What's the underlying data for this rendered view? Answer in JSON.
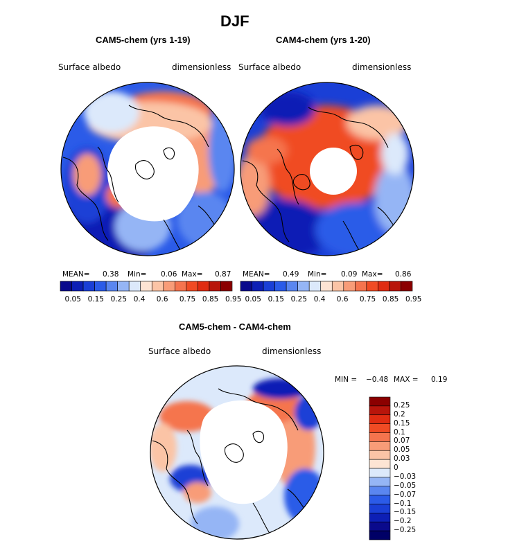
{
  "figure": {
    "title": "DJF"
  },
  "chart_data": [
    {
      "type": "heatmap",
      "projection": "north polar stereographic",
      "title": "CAM5-chem (yrs 1-19)",
      "left_label": "Surface albedo",
      "right_label": "dimensionless",
      "stats": {
        "mean_label": "MEAN=",
        "mean": "0.38",
        "min_label": "Min=",
        "min": "0.06",
        "max_label": "Max=",
        "max": "0.87"
      },
      "colorbar": {
        "orientation": "horizontal",
        "levels": [
          "0.05",
          "0.1",
          "0.15",
          "0.2",
          "0.25",
          "0.3",
          "0.4",
          "0.5",
          "0.6",
          "0.7",
          "0.75",
          "0.8",
          "0.85",
          "0.9",
          "0.95"
        ],
        "tick_labels": [
          "0.05",
          "0.15",
          "0.25",
          "0.4",
          "0.6",
          "0.75",
          "0.85",
          "0.95"
        ],
        "colors": [
          "#0a0a8c",
          "#0d1fb5",
          "#1a3fd6",
          "#2b5be8",
          "#5a86f0",
          "#95b5f5",
          "#dce9fb",
          "#fde4d4",
          "#fbc4a6",
          "#f89c78",
          "#f5744e",
          "#f04b24",
          "#e02c12",
          "#b8150b",
          "#8b0000"
        ]
      },
      "polar_hole_radius": "mostly missing north of ~65N"
    },
    {
      "type": "heatmap",
      "projection": "north polar stereographic",
      "title": "CAM4-chem (yrs 1-20)",
      "left_label": "Surface albedo",
      "right_label": "dimensionless",
      "stats": {
        "mean_label": "MEAN=",
        "mean": "0.49",
        "min_label": "Min=",
        "min": "0.09",
        "max_label": "Max=",
        "max": "0.86"
      },
      "colorbar": {
        "orientation": "horizontal",
        "levels": [
          "0.05",
          "0.1",
          "0.15",
          "0.2",
          "0.25",
          "0.3",
          "0.4",
          "0.5",
          "0.6",
          "0.7",
          "0.75",
          "0.8",
          "0.85",
          "0.9",
          "0.95"
        ],
        "tick_labels": [
          "0.05",
          "0.15",
          "0.25",
          "0.4",
          "0.6",
          "0.75",
          "0.85",
          "0.95"
        ],
        "colors": [
          "#0a0a8c",
          "#0d1fb5",
          "#1a3fd6",
          "#2b5be8",
          "#5a86f0",
          "#95b5f5",
          "#dce9fb",
          "#fde4d4",
          "#fbc4a6",
          "#f89c78",
          "#f5744e",
          "#f04b24",
          "#e02c12",
          "#b8150b",
          "#8b0000"
        ]
      }
    },
    {
      "type": "heatmap",
      "projection": "north polar stereographic",
      "title": "CAM5-chem - CAM4-chem",
      "left_label": "Surface albedo",
      "right_label": "dimensionless",
      "stats": {
        "min_label": "MIN =",
        "min": "−0.48",
        "max_label": "MAX =",
        "max": "0.19"
      },
      "colorbar": {
        "orientation": "vertical",
        "tick_labels": [
          "0.25",
          "0.2",
          "0.15",
          "0.1",
          "0.07",
          "0.05",
          "0.03",
          "0",
          "−0.03",
          "−0.05",
          "−0.07",
          "−0.1",
          "−0.15",
          "−0.2",
          "−0.25"
        ],
        "colors": [
          "#8b0000",
          "#b8150b",
          "#e02c12",
          "#f04b24",
          "#f5744e",
          "#f89c78",
          "#fbc4a6",
          "#fde4d4",
          "#dce9fb",
          "#95b5f5",
          "#5a86f0",
          "#2b5be8",
          "#1a3fd6",
          "#0d1fb5",
          "#0a0a8c",
          "#000066"
        ]
      }
    }
  ]
}
